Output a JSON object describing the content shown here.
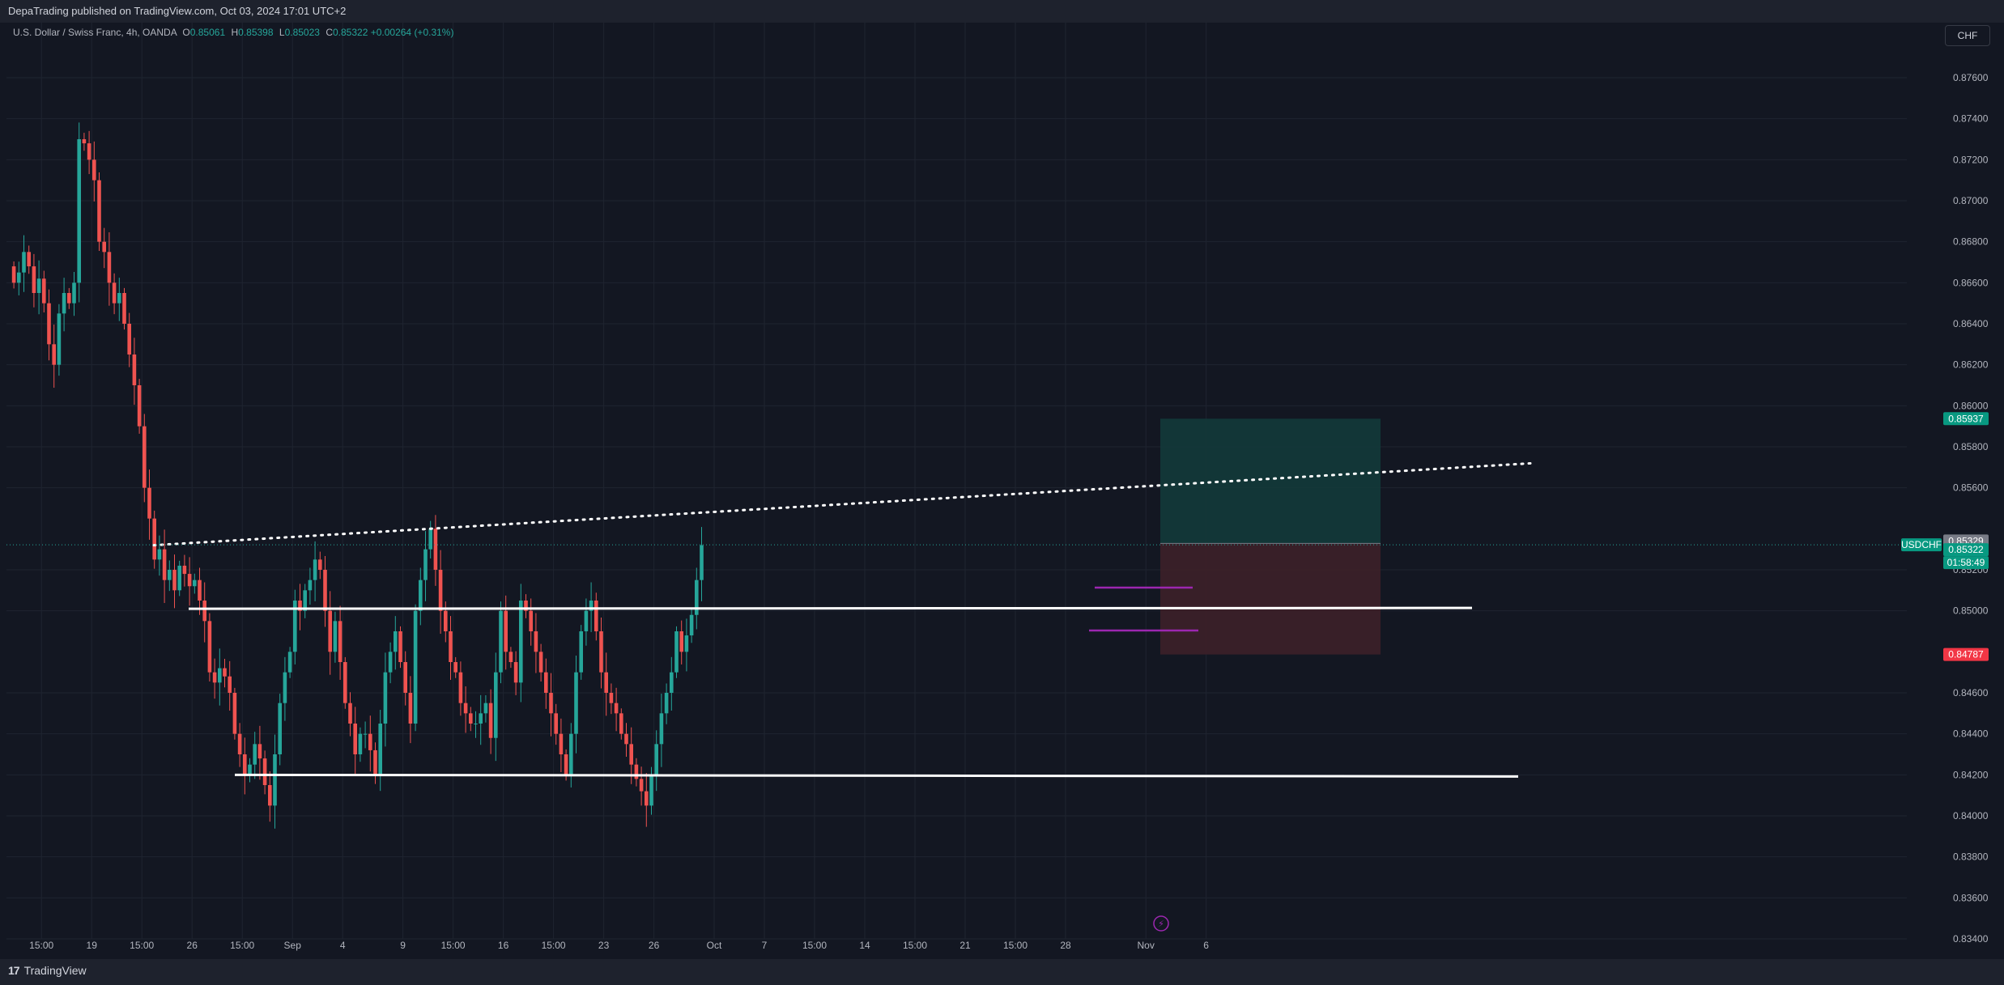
{
  "header": {
    "publisher": "DepaTrading published on TradingView.com, Oct 03, 2024 17:01 UTC+2"
  },
  "legend": {
    "symbol": "U.S. Dollar / Swiss Franc, 4h, OANDA",
    "open_label": "O",
    "open": "0.85061",
    "high_label": "H",
    "high": "0.85398",
    "low_label": "L",
    "low": "0.85023",
    "close_label": "C",
    "close": "0.85322",
    "change": "+0.00264 (+0.31%)"
  },
  "toolbar": {
    "currency": "CHF"
  },
  "footer": {
    "brand": "TradingView"
  },
  "colors": {
    "background": "#131722",
    "up": "#26a69a",
    "down": "#ef5350",
    "grid": "#1f2430",
    "lines": "#ffffff",
    "purple": "#9c27b0",
    "target_zone": "#133a3a",
    "stop_zone": "#3d2029"
  },
  "chart_data": {
    "type": "candlestick",
    "symbol": "USDCHF",
    "interval": "4h",
    "ylim": [
      0.834,
      0.8775
    ],
    "y_ticks": [
      "0.87600",
      "0.87400",
      "0.87200",
      "0.87000",
      "0.86800",
      "0.86600",
      "0.86400",
      "0.86200",
      "0.86000",
      "0.85800",
      "0.85600",
      "0.85200",
      "0.85000",
      "0.84600",
      "0.84400",
      "0.84200",
      "0.84000",
      "0.83800",
      "0.83600",
      "0.83400"
    ],
    "x_ticks": [
      "15:00",
      "19",
      "15:00",
      "26",
      "15:00",
      "Sep",
      "4",
      "9",
      "15:00",
      "16",
      "15:00",
      "23",
      "26",
      "Oct",
      "7",
      "15:00",
      "14",
      "15:00",
      "21",
      "15:00",
      "28",
      "Nov",
      "6"
    ],
    "x_tick_bars": [
      6,
      16,
      26,
      36,
      46,
      56,
      66,
      78,
      88,
      98,
      108,
      118,
      128,
      140,
      150,
      160,
      170,
      180,
      190,
      200,
      210,
      226,
      238
    ],
    "ohlc_closes": [
      0.866,
      0.8665,
      0.8675,
      0.8668,
      0.8655,
      0.8662,
      0.865,
      0.863,
      0.862,
      0.8645,
      0.8655,
      0.865,
      0.866,
      0.873,
      0.8728,
      0.872,
      0.871,
      0.868,
      0.8675,
      0.866,
      0.865,
      0.8655,
      0.864,
      0.8625,
      0.861,
      0.859,
      0.856,
      0.8545,
      0.8525,
      0.853,
      0.8515,
      0.852,
      0.851,
      0.8522,
      0.8518,
      0.8512,
      0.8515,
      0.8505,
      0.8495,
      0.847,
      0.8465,
      0.8472,
      0.8468,
      0.846,
      0.844,
      0.843,
      0.842,
      0.8425,
      0.8435,
      0.8428,
      0.8415,
      0.8405,
      0.843,
      0.8455,
      0.847,
      0.848,
      0.8505,
      0.85,
      0.851,
      0.8515,
      0.8525,
      0.852,
      0.85,
      0.848,
      0.8495,
      0.8475,
      0.8455,
      0.8445,
      0.843,
      0.844,
      0.844,
      0.8432,
      0.842,
      0.8445,
      0.847,
      0.848,
      0.849,
      0.8475,
      0.846,
      0.8445,
      0.85,
      0.8515,
      0.853,
      0.854,
      0.852,
      0.85,
      0.849,
      0.8475,
      0.847,
      0.8455,
      0.845,
      0.8445,
      0.8445,
      0.845,
      0.8455,
      0.8438,
      0.847,
      0.85,
      0.848,
      0.8475,
      0.8465,
      0.8505,
      0.85,
      0.849,
      0.848,
      0.847,
      0.846,
      0.845,
      0.844,
      0.843,
      0.842,
      0.844,
      0.847,
      0.849,
      0.85,
      0.8505,
      0.849,
      0.847,
      0.846,
      0.8455,
      0.845,
      0.844,
      0.8435,
      0.8425,
      0.8418,
      0.8412,
      0.8405,
      0.842,
      0.8435,
      0.845,
      0.846,
      0.847,
      0.849,
      0.848,
      0.8488,
      0.8498,
      0.8515,
      0.8532
    ],
    "horizontal_levels": [
      0.8501,
      0.842
    ],
    "trendline": {
      "from": [
        0.8532,
        0
      ],
      "to": [
        0.8572,
        1
      ],
      "style": "dotted"
    },
    "long_position": {
      "entry": 0.85329,
      "target": 0.85937,
      "stop": 0.84787
    },
    "price_badges": [
      {
        "label": "0.85937",
        "value": 0.85937,
        "color": "#089981"
      },
      {
        "label": "0.85329",
        "value": 0.85329,
        "color": "#787b86"
      },
      {
        "label": "0.85322",
        "value": 0.85322,
        "color": "#089981"
      },
      {
        "label": "0.84787",
        "value": 0.84787,
        "color": "#f23645"
      }
    ],
    "symbol_badge": "USDCHF",
    "countdown": "01:58:49",
    "last_price": 0.85322
  }
}
